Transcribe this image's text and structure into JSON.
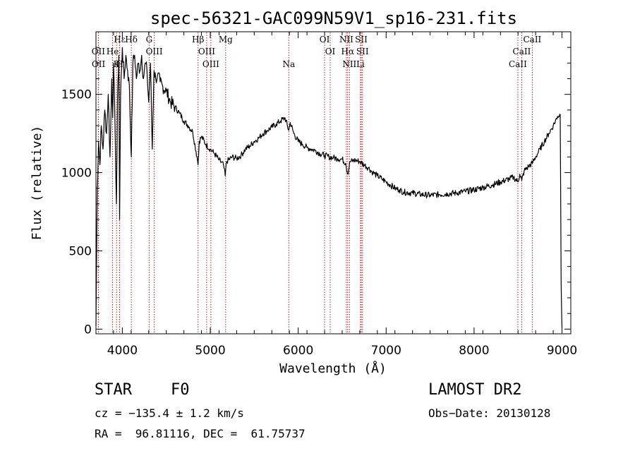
{
  "chart_data": {
    "type": "line",
    "title": "spec-56321-GAC099N59V1_sp16-231.fits",
    "xlabel": "Wavelength (Å)",
    "ylabel": "Flux (relative)",
    "xlim": [
      3700,
      9100
    ],
    "ylim": [
      -30,
      1900
    ],
    "x_ticks": [
      4000,
      5000,
      6000,
      7000,
      8000,
      9000
    ],
    "y_ticks": [
      0,
      500,
      1000,
      1500
    ],
    "grid": false,
    "line_color": "#000000",
    "marker_color": "#b02020",
    "spectral_lines": [
      {
        "label": "Hδ",
        "wavelength": 4102,
        "row": 0
      },
      {
        "label": "Hε",
        "wavelength": 3970,
        "row": 0
      },
      {
        "label": "G",
        "wavelength": 4305,
        "row": 0
      },
      {
        "label": "Hβ",
        "wavelength": 4861,
        "row": 0
      },
      {
        "label": "Mg",
        "wavelength": 5175,
        "row": 0
      },
      {
        "label": "OI",
        "wavelength": 6300,
        "row": 0
      },
      {
        "label": "NII",
        "wavelength": 6548,
        "row": 0
      },
      {
        "label": "SII",
        "wavelength": 6717,
        "row": 0
      },
      {
        "label": "CaII",
        "wavelength": 8662,
        "row": 0
      },
      {
        "label": "OII",
        "wavelength": 3727,
        "row": 1
      },
      {
        "label": "He",
        "wavelength": 3889,
        "row": 1
      },
      {
        "label": "OIII",
        "wavelength": 4363,
        "row": 1
      },
      {
        "label": "OIII",
        "wavelength": 4959,
        "row": 1
      },
      {
        "label": "OI",
        "wavelength": 6364,
        "row": 1
      },
      {
        "label": "Hα",
        "wavelength": 6563,
        "row": 1
      },
      {
        "label": "SII",
        "wavelength": 6731,
        "row": 1
      },
      {
        "label": "CaII",
        "wavelength": 8542,
        "row": 1
      },
      {
        "label": "OII",
        "wavelength": 3729,
        "row": 2
      },
      {
        "label": "K",
        "wavelength": 3934,
        "row": 2
      },
      {
        "label": "H",
        "wavelength": 3968,
        "row": 2
      },
      {
        "label": "OIII",
        "wavelength": 5007,
        "row": 2
      },
      {
        "label": "Na",
        "wavelength": 5893,
        "row": 2
      },
      {
        "label": "NII",
        "wavelength": 6583,
        "row": 2
      },
      {
        "label": "Li",
        "wavelength": 6708,
        "row": 2
      },
      {
        "label": "CaII",
        "wavelength": 8498,
        "row": 2
      }
    ],
    "series": [
      {
        "x": [
          3700,
          3715,
          3730,
          3745,
          3760,
          3780,
          3800,
          3820,
          3840,
          3860,
          3880,
          3890,
          3900,
          3920,
          3933,
          3945,
          3960,
          3969,
          3980,
          4000,
          4020,
          4040,
          4060,
          4080,
          4102,
          4120,
          4140,
          4160,
          4180,
          4200,
          4220,
          4240,
          4260,
          4280,
          4300,
          4320,
          4340,
          4360,
          4380,
          4400,
          4430,
          4460,
          4500,
          4550,
          4600,
          4650,
          4700,
          4750,
          4800,
          4850,
          4861,
          4875,
          4900,
          4950,
          5000,
          5050,
          5100,
          5150,
          5170,
          5185,
          5250,
          5300,
          5350,
          5400,
          5450,
          5500,
          5550,
          5600,
          5650,
          5700,
          5750,
          5800,
          5850,
          5893,
          5910,
          5950,
          6000,
          6050,
          6100,
          6150,
          6200,
          6250,
          6300,
          6350,
          6400,
          6450,
          6500,
          6540,
          6563,
          6590,
          6650,
          6700,
          6750,
          6800,
          6850,
          6900,
          6950,
          7000,
          7050,
          7100,
          7150,
          7200,
          7300,
          7400,
          7500,
          7600,
          7700,
          7800,
          7900,
          8000,
          8100,
          8200,
          8300,
          8400,
          8450,
          8498,
          8520,
          8542,
          8570,
          8620,
          8662,
          8700,
          8750,
          8800,
          8850,
          8900,
          8950,
          8980,
          8990,
          9000
        ],
        "y": [
          20,
          900,
          1200,
          1050,
          1300,
          1150,
          1400,
          1250,
          1500,
          1100,
          1600,
          1350,
          1700,
          1200,
          800,
          1450,
          1750,
          700,
          1500,
          1800,
          1600,
          1750,
          1650,
          1550,
          1100,
          1700,
          1750,
          1600,
          1700,
          1650,
          1750,
          1600,
          1700,
          1650,
          1450,
          1700,
          1150,
          1650,
          1600,
          1620,
          1580,
          1550,
          1520,
          1450,
          1420,
          1380,
          1330,
          1300,
          1260,
          1100,
          1050,
          1200,
          1230,
          1180,
          1150,
          1120,
          1080,
          1050,
          980,
          1070,
          1100,
          1090,
          1110,
          1150,
          1170,
          1200,
          1220,
          1250,
          1270,
          1290,
          1310,
          1330,
          1350,
          1270,
          1320,
          1250,
          1200,
          1180,
          1160,
          1150,
          1140,
          1120,
          1110,
          1100,
          1095,
          1090,
          1085,
          1060,
          990,
          1070,
          1080,
          1070,
          1050,
          1030,
          1000,
          980,
          960,
          940,
          920,
          900,
          890,
          875,
          870,
          860,
          855,
          860,
          865,
          870,
          880,
          890,
          905,
          920,
          940,
          960,
          970,
          940,
          990,
          950,
          1010,
          1040,
          1060,
          1100,
          1150,
          1200,
          1250,
          1300,
          1360,
          1370,
          300,
          10
        ]
      }
    ]
  },
  "info": {
    "object_class": "STAR",
    "subclass": "F0",
    "survey": "LAMOST DR2",
    "cz": "cz = −135.4 ± 1.2 km/s",
    "obs_date": "Obs−Date: 20130128",
    "radec": "RA =  96.81116, DEC =  61.75737"
  }
}
